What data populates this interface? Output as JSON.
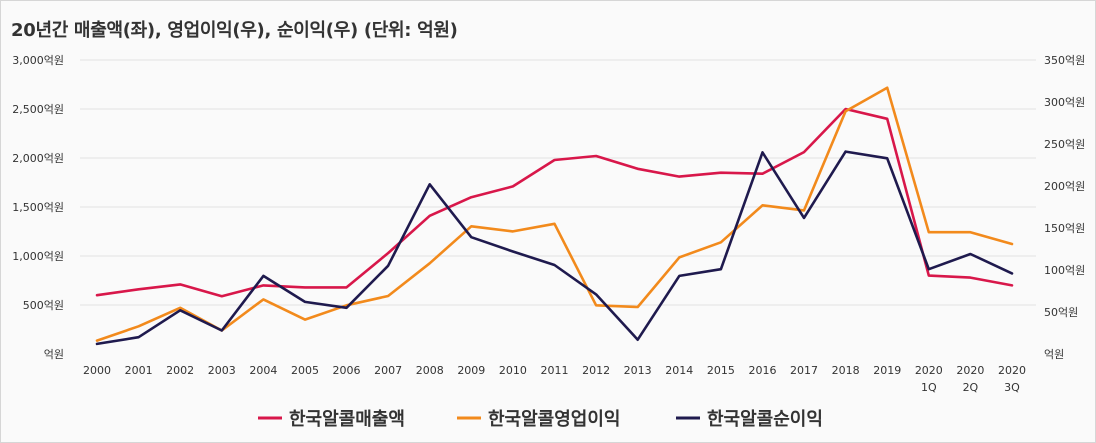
{
  "chart_data": {
    "type": "line",
    "title": "20년간 매출액(좌), 영업이익(우), 순이익(우) (단위: 억원)",
    "categories": [
      [
        "2000"
      ],
      [
        "2001"
      ],
      [
        "2002"
      ],
      [
        "2003"
      ],
      [
        "2004"
      ],
      [
        "2005"
      ],
      [
        "2006"
      ],
      [
        "2007"
      ],
      [
        "2008"
      ],
      [
        "2009"
      ],
      [
        "2010"
      ],
      [
        "2011"
      ],
      [
        "2012"
      ],
      [
        "2013"
      ],
      [
        "2014"
      ],
      [
        "2015"
      ],
      [
        "2016"
      ],
      [
        "2017"
      ],
      [
        "2018"
      ],
      [
        "2019"
      ],
      [
        "2020",
        "1Q"
      ],
      [
        "2020",
        "2Q"
      ],
      [
        "2020",
        "3Q"
      ]
    ],
    "y_left": {
      "ticks": [
        0,
        500,
        1000,
        1500,
        2000,
        2500,
        3000
      ],
      "tick_labels": [
        "억원",
        "500억원",
        "1,000억원",
        "1,500억원",
        "2,000억원",
        "2,500억원",
        "3,000억원"
      ],
      "ylim": [
        0,
        3000
      ]
    },
    "y_right": {
      "ticks": [
        0,
        50,
        100,
        150,
        200,
        250,
        300,
        350
      ],
      "tick_labels": [
        "억원",
        "50억원",
        "100억원",
        "150억원",
        "200억원",
        "250억원",
        "300억원",
        "350억원"
      ],
      "ylim": [
        0,
        350
      ]
    },
    "grid": true,
    "legend_position": "bottom",
    "series": [
      {
        "name": "한국알콜매출액",
        "axis": "left",
        "color": "#d8174a",
        "values": [
          600,
          660,
          710,
          590,
          700,
          680,
          680,
          1030,
          1410,
          1600,
          1710,
          1980,
          2020,
          1890,
          1810,
          1850,
          1840,
          2060,
          2500,
          2400,
          800,
          780,
          700
        ]
      },
      {
        "name": "한국알콜영업이익",
        "axis": "right",
        "color": "#f28a1c",
        "values": [
          16,
          33,
          55,
          28,
          65,
          41,
          58,
          69,
          108,
          152,
          146,
          155,
          58,
          56,
          115,
          133,
          177,
          171,
          289,
          317,
          145,
          145,
          131
        ]
      },
      {
        "name": "한국알콜순이익",
        "axis": "right",
        "color": "#1f1a4e",
        "values": [
          12,
          20,
          52,
          28,
          93,
          62,
          55,
          105,
          202,
          139,
          122,
          106,
          71,
          17,
          93,
          101,
          240,
          162,
          241,
          233,
          101,
          119,
          96
        ]
      }
    ]
  }
}
